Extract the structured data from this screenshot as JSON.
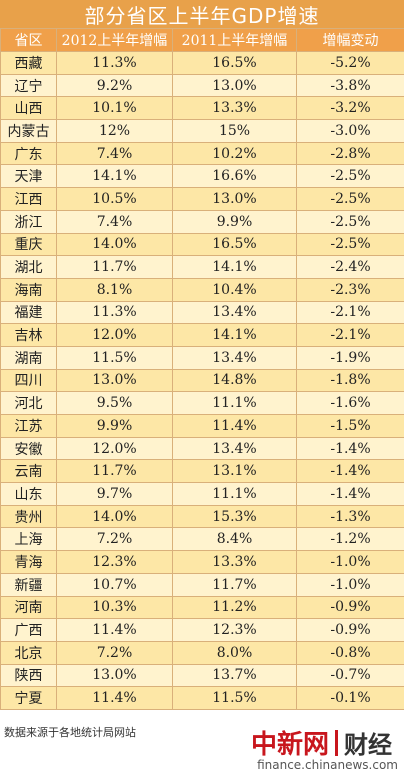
{
  "title": "部分省区上半年GDP增速",
  "headers": [
    "省区",
    "2012上半年增幅",
    "2011上半年增幅",
    "增幅变动"
  ],
  "rows": [
    [
      "西藏",
      "11.3%",
      "16.5%",
      "-5.2%"
    ],
    [
      "辽宁",
      "9.2%",
      "13.0%",
      "-3.8%"
    ],
    [
      "山西",
      "10.1%",
      "13.3%",
      "-3.2%"
    ],
    [
      "内蒙古",
      "12%",
      "15%",
      "-3.0%"
    ],
    [
      "广东",
      "7.4%",
      "10.2%",
      "-2.8%"
    ],
    [
      "天津",
      "14.1%",
      "16.6%",
      "-2.5%"
    ],
    [
      "江西",
      "10.5%",
      "13.0%",
      "-2.5%"
    ],
    [
      "浙江",
      "7.4%",
      "9.9%",
      "-2.5%"
    ],
    [
      "重庆",
      "14.0%",
      "16.5%",
      "-2.5%"
    ],
    [
      "湖北",
      "11.7%",
      "14.1%",
      "-2.4%"
    ],
    [
      "海南",
      "8.1%",
      "10.4%",
      "-2.3%"
    ],
    [
      "福建",
      "11.3%",
      "13.4%",
      "-2.1%"
    ],
    [
      "吉林",
      "12.0%",
      "14.1%",
      "-2.1%"
    ],
    [
      "湖南",
      "11.5%",
      "13.4%",
      "-1.9%"
    ],
    [
      "四川",
      "13.0%",
      "14.8%",
      "-1.8%"
    ],
    [
      "河北",
      "9.5%",
      "11.1%",
      "-1.6%"
    ],
    [
      "江苏",
      "9.9%",
      "11.4%",
      "-1.5%"
    ],
    [
      "安徽",
      "12.0%",
      "13.4%",
      "-1.4%"
    ],
    [
      "云南",
      "11.7%",
      "13.1%",
      "-1.4%"
    ],
    [
      "山东",
      "9.7%",
      "11.1%",
      "-1.4%"
    ],
    [
      "贵州",
      "14.0%",
      "15.3%",
      "-1.3%"
    ],
    [
      "上海",
      "7.2%",
      "8.4%",
      "-1.2%"
    ],
    [
      "青海",
      "12.3%",
      "13.3%",
      "-1.0%"
    ],
    [
      "新疆",
      "10.7%",
      "11.7%",
      "-1.0%"
    ],
    [
      "河南",
      "10.3%",
      "11.2%",
      "-0.9%"
    ],
    [
      "广西",
      "11.4%",
      "12.3%",
      "-0.9%"
    ],
    [
      "北京",
      "7.2%",
      "8.0%",
      "-0.8%"
    ],
    [
      "陕西",
      "13.0%",
      "13.7%",
      "-0.7%"
    ],
    [
      "宁夏",
      "11.4%",
      "11.5%",
      "-0.1%"
    ]
  ],
  "footer": {
    "source": "数据来源于各地统计局网站",
    "logo_cn": "中新网",
    "logo_fin": "财经",
    "site": "finance.chinanews.com"
  },
  "colors": {
    "title_bg": "#e8a14a",
    "header_bg": "#f0a04a",
    "row_odd": "#fde7a6",
    "row_even": "#fff3ce",
    "logo_red": "#c8161d"
  }
}
